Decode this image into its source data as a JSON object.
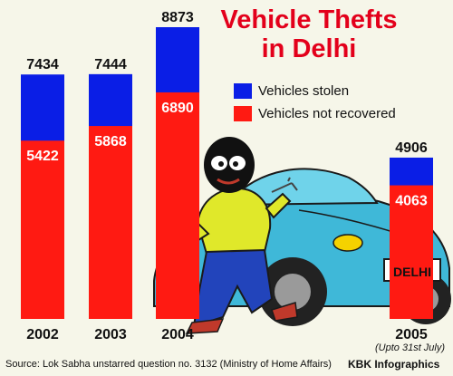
{
  "title_lines": [
    "Vehicle Thefts",
    "in Delhi"
  ],
  "legend": [
    {
      "label": "Vehicles stolen",
      "color": "#0a1ee6"
    },
    {
      "label": "Vehicles not recovered",
      "color": "#ff1a12"
    }
  ],
  "chart_data": {
    "type": "bar",
    "categories": [
      "2002",
      "2003",
      "2004",
      "2005"
    ],
    "series": [
      {
        "name": "Vehicles stolen",
        "values": [
          7434,
          7444,
          8873,
          4906
        ]
      },
      {
        "name": "Vehicles not recovered",
        "values": [
          5422,
          5868,
          6890,
          4063
        ]
      }
    ],
    "ylim": [
      0,
      8873
    ],
    "grid": false,
    "legend_position": "right"
  },
  "footnote": "(Upto 31st July)",
  "source": "Source: Lok Sabha unstarred question no. 3132 (Ministry of Home Affairs)",
  "credit": "KBK Infographics",
  "car_plate": "DELHI"
}
